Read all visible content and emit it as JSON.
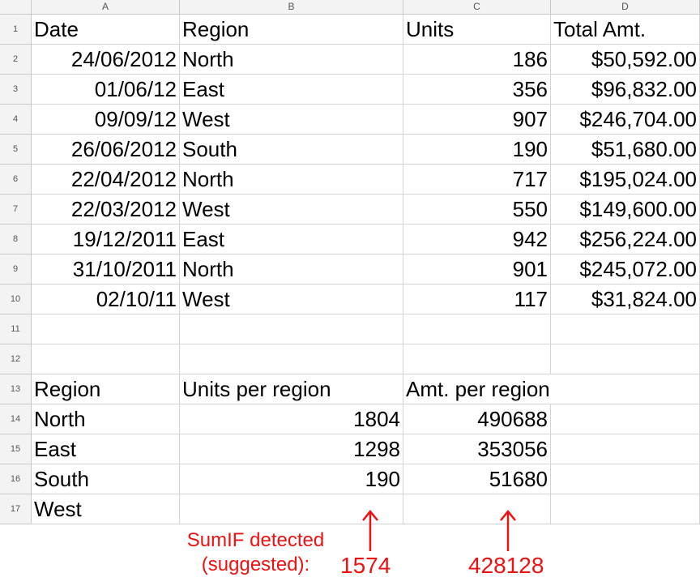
{
  "columns": [
    "A",
    "B",
    "C",
    "D"
  ],
  "rows": [
    {
      "num": "1",
      "a": "Date",
      "b": "Region",
      "c": "Units",
      "d": "Total Amt."
    },
    {
      "num": "2",
      "a": "24/06/2012",
      "b": "North",
      "c": "186",
      "d": "$50,592.00"
    },
    {
      "num": "3",
      "a": "01/06/12",
      "b": "East",
      "c": "356",
      "d": "$96,832.00"
    },
    {
      "num": "4",
      "a": "09/09/12",
      "b": "West",
      "c": "907",
      "d": "$246,704.00"
    },
    {
      "num": "5",
      "a": "26/06/2012",
      "b": "South",
      "c": "190",
      "d": "$51,680.00"
    },
    {
      "num": "6",
      "a": "22/04/2012",
      "b": "North",
      "c": "717",
      "d": "$195,024.00"
    },
    {
      "num": "7",
      "a": "22/03/2012",
      "b": "West",
      "c": "550",
      "d": "$149,600.00"
    },
    {
      "num": "8",
      "a": "19/12/2011",
      "b": "East",
      "c": "942",
      "d": "$256,224.00"
    },
    {
      "num": "9",
      "a": "31/10/2011",
      "b": "North",
      "c": "901",
      "d": "$245,072.00"
    },
    {
      "num": "10",
      "a": "02/10/11",
      "b": "West",
      "c": "117",
      "d": "$31,824.00"
    },
    {
      "num": "11",
      "a": "",
      "b": "",
      "c": "",
      "d": ""
    },
    {
      "num": "12",
      "a": "",
      "b": "",
      "c": "",
      "d": ""
    },
    {
      "num": "13",
      "a": "Region",
      "b": "Units per region",
      "c": "Amt. per region",
      "d": ""
    },
    {
      "num": "14",
      "a": "North",
      "b": "1804",
      "c": "490688",
      "d": ""
    },
    {
      "num": "15",
      "a": "East",
      "b": "1298",
      "c": "353056",
      "d": ""
    },
    {
      "num": "16",
      "a": "South",
      "b": "190",
      "c": "51680",
      "d": ""
    },
    {
      "num": "17",
      "a": "West",
      "b": "",
      "c": "",
      "d": ""
    }
  ],
  "annotation": {
    "label_line1": "SumIF detected",
    "label_line2": "(suggested):",
    "units_value": "1574",
    "amount_value": "428128",
    "color": "#ee1111"
  }
}
